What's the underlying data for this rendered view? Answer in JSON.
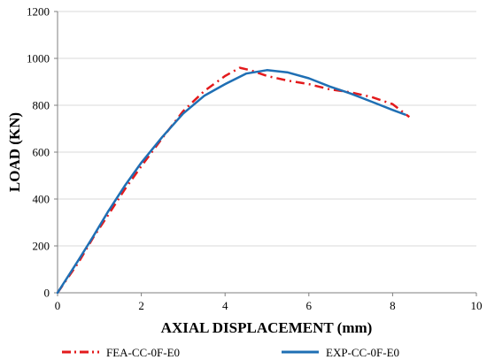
{
  "chart_data": {
    "type": "line",
    "title": "",
    "xlabel": "AXIAL DISPLACEMENT (mm)",
    "ylabel": "LOAD (KN)",
    "xlim": [
      0,
      10
    ],
    "ylim": [
      0,
      1200
    ],
    "x_ticks": [
      0,
      2,
      4,
      6,
      8,
      10
    ],
    "y_ticks": [
      0,
      200,
      400,
      600,
      800,
      1000,
      1200
    ],
    "grid": "horizontal",
    "legend_position": "bottom",
    "series": [
      {
        "name": "FEA-CC-0F-E0",
        "color": "#e31a1c",
        "line_style": "dash-dot",
        "points": [
          [
            0,
            0
          ],
          [
            0.5,
            130
          ],
          [
            0.85,
            235
          ],
          [
            1.2,
            330
          ],
          [
            1.6,
            440
          ],
          [
            2.0,
            540
          ],
          [
            2.5,
            660
          ],
          [
            3.0,
            775
          ],
          [
            3.5,
            860
          ],
          [
            4.0,
            925
          ],
          [
            4.35,
            960
          ],
          [
            4.6,
            950
          ],
          [
            5.0,
            925
          ],
          [
            5.5,
            905
          ],
          [
            6.0,
            890
          ],
          [
            6.5,
            868
          ],
          [
            7.0,
            855
          ],
          [
            7.5,
            835
          ],
          [
            8.0,
            805
          ],
          [
            8.4,
            750
          ]
        ]
      },
      {
        "name": "EXP-CC-0F-E0",
        "color": "#1f6fb4",
        "line_style": "solid",
        "points": [
          [
            0,
            0
          ],
          [
            0.5,
            140
          ],
          [
            0.85,
            240
          ],
          [
            1.2,
            345
          ],
          [
            1.6,
            455
          ],
          [
            2.0,
            555
          ],
          [
            2.5,
            665
          ],
          [
            3.0,
            765
          ],
          [
            3.5,
            840
          ],
          [
            4.0,
            890
          ],
          [
            4.5,
            935
          ],
          [
            5.0,
            950
          ],
          [
            5.5,
            940
          ],
          [
            6.0,
            915
          ],
          [
            6.5,
            880
          ],
          [
            7.0,
            850
          ],
          [
            7.5,
            815
          ],
          [
            8.0,
            780
          ],
          [
            8.3,
            760
          ]
        ]
      }
    ]
  }
}
